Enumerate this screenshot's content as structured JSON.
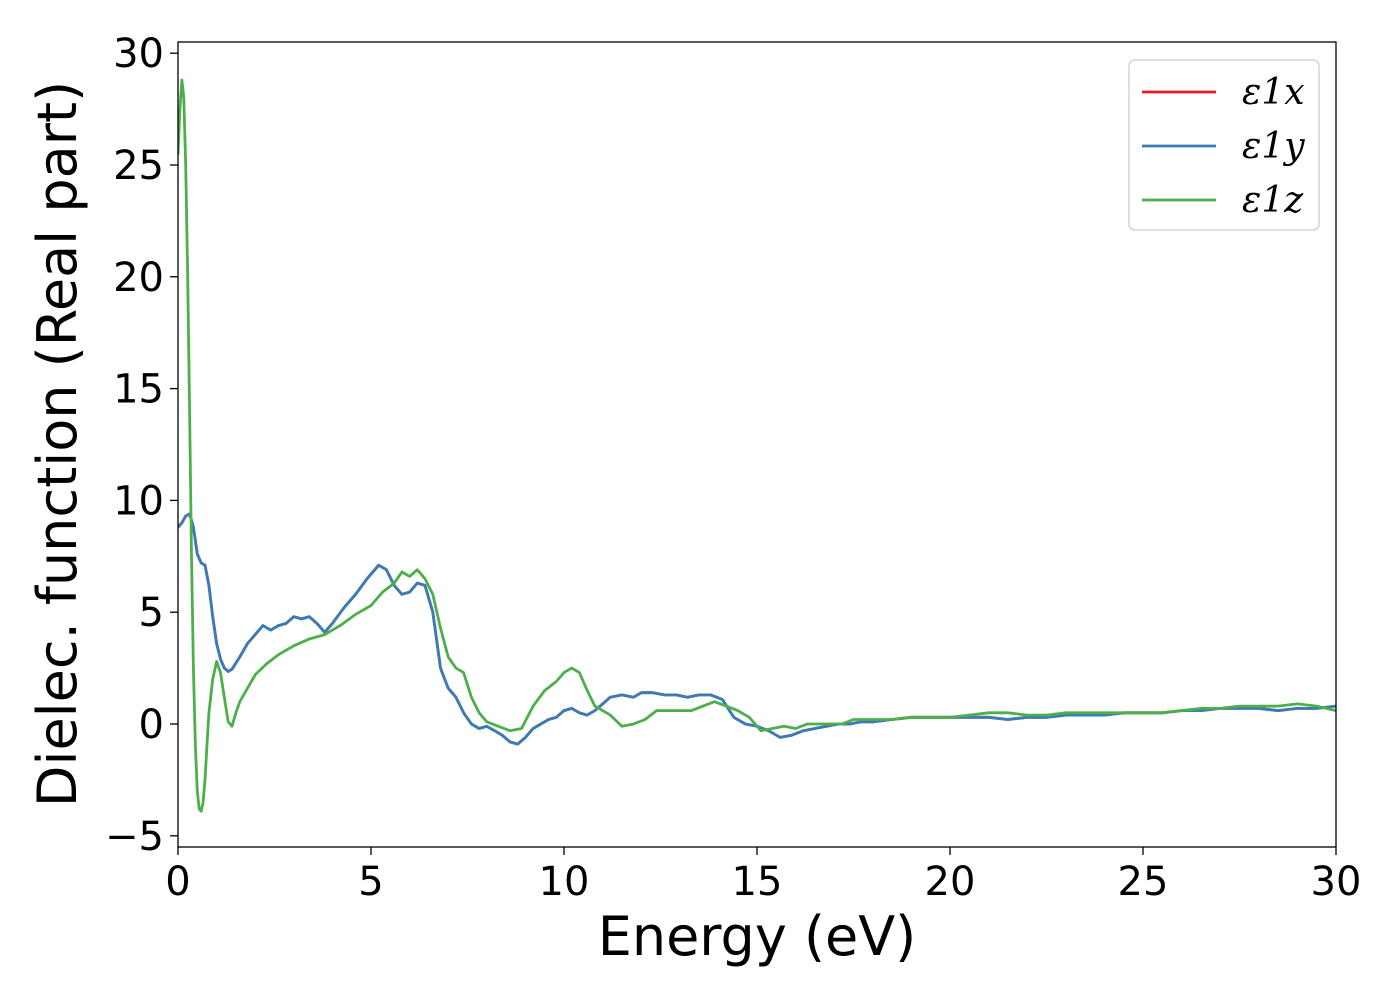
{
  "chart_data": {
    "type": "line",
    "xlabel": "Energy (eV)",
    "ylabel": "Dielec. function (Real part)",
    "xlim": [
      0,
      30
    ],
    "ylim": [
      -5.5,
      30.5
    ],
    "xticks": [
      0,
      5,
      10,
      15,
      20,
      25,
      30
    ],
    "xtick_labels": [
      "0",
      "5",
      "10",
      "15",
      "20",
      "25",
      "30"
    ],
    "yticks": [
      -5,
      0,
      5,
      10,
      15,
      20,
      25,
      30
    ],
    "ytick_labels": [
      "−5",
      "0",
      "5",
      "10",
      "15",
      "20",
      "25",
      "30"
    ],
    "grid": false,
    "legend_position": "top-right",
    "series": [
      {
        "name": "ε1x",
        "color": "#e41a1c",
        "x": [
          0,
          0.1,
          0.2,
          0.3,
          0.4,
          0.5,
          0.6,
          0.7,
          0.8,
          0.9,
          1.0,
          1.1,
          1.2,
          1.3,
          1.4,
          1.6,
          1.8,
          2.0,
          2.2,
          2.4,
          2.6,
          2.8,
          3.0,
          3.2,
          3.4,
          3.6,
          3.8,
          4.0,
          4.3,
          4.6,
          4.9,
          5.2,
          5.4,
          5.6,
          5.8,
          6.0,
          6.2,
          6.4,
          6.6,
          6.8,
          7.0,
          7.2,
          7.4,
          7.6,
          7.8,
          8.0,
          8.2,
          8.4,
          8.6,
          8.8,
          9.0,
          9.2,
          9.4,
          9.6,
          9.8,
          10.0,
          10.2,
          10.4,
          10.6,
          10.8,
          11.0,
          11.2,
          11.5,
          11.8,
          12.0,
          12.3,
          12.6,
          12.9,
          13.2,
          13.5,
          13.8,
          14.1,
          14.4,
          14.7,
          15.0,
          15.3,
          15.6,
          15.9,
          16.2,
          16.5,
          16.8,
          17.1,
          17.4,
          17.7,
          18.0,
          18.5,
          19.0,
          19.5,
          20.0,
          20.5,
          21.0,
          21.5,
          22.0,
          22.5,
          23.0,
          23.5,
          24.0,
          24.5,
          25.0,
          25.5,
          26.0,
          26.5,
          27.0,
          27.5,
          28.0,
          28.5,
          29.0,
          29.5,
          30.0
        ],
        "y": [
          8.8,
          9.0,
          9.3,
          9.4,
          8.8,
          7.6,
          7.2,
          7.1,
          6.2,
          4.8,
          3.6,
          2.9,
          2.5,
          2.35,
          2.45,
          3.0,
          3.6,
          4.0,
          4.4,
          4.2,
          4.4,
          4.5,
          4.8,
          4.7,
          4.8,
          4.5,
          4.1,
          4.5,
          5.2,
          5.8,
          6.5,
          7.1,
          6.9,
          6.2,
          5.8,
          5.9,
          6.3,
          6.2,
          5.0,
          2.5,
          1.6,
          1.2,
          0.5,
          0.0,
          -0.2,
          -0.1,
          -0.3,
          -0.5,
          -0.8,
          -0.9,
          -0.6,
          -0.2,
          0.0,
          0.2,
          0.3,
          0.6,
          0.7,
          0.5,
          0.4,
          0.6,
          0.9,
          1.2,
          1.3,
          1.2,
          1.4,
          1.4,
          1.3,
          1.3,
          1.2,
          1.3,
          1.3,
          1.1,
          0.3,
          0.0,
          -0.1,
          -0.3,
          -0.6,
          -0.5,
          -0.3,
          -0.2,
          -0.1,
          0.0,
          0.0,
          0.1,
          0.1,
          0.2,
          0.3,
          0.3,
          0.3,
          0.3,
          0.3,
          0.2,
          0.3,
          0.3,
          0.4,
          0.4,
          0.4,
          0.5,
          0.5,
          0.5,
          0.6,
          0.6,
          0.7,
          0.7,
          0.7,
          0.6,
          0.7,
          0.7,
          0.8
        ]
      },
      {
        "name": "ε1y",
        "color": "#377eb8",
        "x": [
          0,
          0.1,
          0.2,
          0.3,
          0.4,
          0.5,
          0.6,
          0.7,
          0.8,
          0.9,
          1.0,
          1.1,
          1.2,
          1.3,
          1.4,
          1.6,
          1.8,
          2.0,
          2.2,
          2.4,
          2.6,
          2.8,
          3.0,
          3.2,
          3.4,
          3.6,
          3.8,
          4.0,
          4.3,
          4.6,
          4.9,
          5.2,
          5.4,
          5.6,
          5.8,
          6.0,
          6.2,
          6.4,
          6.6,
          6.8,
          7.0,
          7.2,
          7.4,
          7.6,
          7.8,
          8.0,
          8.2,
          8.4,
          8.6,
          8.8,
          9.0,
          9.2,
          9.4,
          9.6,
          9.8,
          10.0,
          10.2,
          10.4,
          10.6,
          10.8,
          11.0,
          11.2,
          11.5,
          11.8,
          12.0,
          12.3,
          12.6,
          12.9,
          13.2,
          13.5,
          13.8,
          14.1,
          14.4,
          14.7,
          15.0,
          15.3,
          15.6,
          15.9,
          16.2,
          16.5,
          16.8,
          17.1,
          17.4,
          17.7,
          18.0,
          18.5,
          19.0,
          19.5,
          20.0,
          20.5,
          21.0,
          21.5,
          22.0,
          22.5,
          23.0,
          23.5,
          24.0,
          24.5,
          25.0,
          25.5,
          26.0,
          26.5,
          27.0,
          27.5,
          28.0,
          28.5,
          29.0,
          29.5,
          30.0
        ],
        "y": [
          8.8,
          9.0,
          9.3,
          9.4,
          8.8,
          7.6,
          7.2,
          7.1,
          6.2,
          4.8,
          3.6,
          2.9,
          2.5,
          2.35,
          2.45,
          3.0,
          3.6,
          4.0,
          4.4,
          4.2,
          4.4,
          4.5,
          4.8,
          4.7,
          4.8,
          4.5,
          4.1,
          4.5,
          5.2,
          5.8,
          6.5,
          7.1,
          6.9,
          6.2,
          5.8,
          5.9,
          6.3,
          6.2,
          5.0,
          2.5,
          1.6,
          1.2,
          0.5,
          0.0,
          -0.2,
          -0.1,
          -0.3,
          -0.5,
          -0.8,
          -0.9,
          -0.6,
          -0.2,
          0.0,
          0.2,
          0.3,
          0.6,
          0.7,
          0.5,
          0.4,
          0.6,
          0.9,
          1.2,
          1.3,
          1.2,
          1.4,
          1.4,
          1.3,
          1.3,
          1.2,
          1.3,
          1.3,
          1.1,
          0.3,
          0.0,
          -0.1,
          -0.3,
          -0.6,
          -0.5,
          -0.3,
          -0.2,
          -0.1,
          0.0,
          0.0,
          0.1,
          0.1,
          0.2,
          0.3,
          0.3,
          0.3,
          0.3,
          0.3,
          0.2,
          0.3,
          0.3,
          0.4,
          0.4,
          0.4,
          0.5,
          0.5,
          0.5,
          0.6,
          0.6,
          0.7,
          0.7,
          0.7,
          0.6,
          0.7,
          0.7,
          0.8
        ]
      },
      {
        "name": "ε1z",
        "color": "#4daf4a",
        "x": [
          0,
          0.05,
          0.1,
          0.15,
          0.2,
          0.25,
          0.3,
          0.35,
          0.4,
          0.45,
          0.5,
          0.55,
          0.6,
          0.65,
          0.7,
          0.75,
          0.8,
          0.9,
          1.0,
          1.1,
          1.2,
          1.3,
          1.4,
          1.5,
          1.6,
          1.8,
          2.0,
          2.3,
          2.6,
          3.0,
          3.4,
          3.8,
          4.2,
          4.6,
          5.0,
          5.3,
          5.6,
          5.8,
          6.0,
          6.2,
          6.4,
          6.6,
          6.8,
          7.0,
          7.2,
          7.4,
          7.6,
          7.8,
          8.0,
          8.3,
          8.6,
          8.9,
          9.2,
          9.5,
          9.8,
          10.0,
          10.2,
          10.4,
          10.6,
          10.8,
          11.0,
          11.2,
          11.5,
          11.8,
          12.1,
          12.4,
          12.7,
          13.0,
          13.3,
          13.6,
          13.9,
          14.2,
          14.5,
          14.8,
          15.1,
          15.4,
          15.7,
          16.0,
          16.3,
          16.6,
          16.9,
          17.2,
          17.5,
          18.0,
          18.5,
          19.0,
          19.5,
          20.0,
          20.5,
          21.0,
          21.5,
          22.0,
          22.5,
          23.0,
          23.5,
          24.0,
          24.5,
          25.0,
          25.5,
          26.0,
          26.5,
          27.0,
          27.5,
          28.0,
          28.5,
          29.0,
          29.5,
          30.0
        ],
        "y": [
          25.5,
          27.5,
          28.8,
          28.0,
          25.0,
          20.0,
          14.0,
          7.5,
          2.5,
          -1.0,
          -3.0,
          -3.8,
          -3.9,
          -3.5,
          -2.5,
          -1.0,
          0.5,
          2.0,
          2.8,
          2.3,
          1.2,
          0.1,
          -0.1,
          0.5,
          1.0,
          1.6,
          2.2,
          2.7,
          3.1,
          3.5,
          3.8,
          4.0,
          4.4,
          4.9,
          5.3,
          5.9,
          6.3,
          6.8,
          6.6,
          6.9,
          6.5,
          5.8,
          4.3,
          3.0,
          2.5,
          2.3,
          1.2,
          0.5,
          0.1,
          -0.1,
          -0.3,
          -0.2,
          0.8,
          1.5,
          1.9,
          2.3,
          2.5,
          2.3,
          1.5,
          0.8,
          0.6,
          0.4,
          -0.1,
          0.0,
          0.2,
          0.6,
          0.6,
          0.6,
          0.6,
          0.8,
          1.0,
          0.8,
          0.6,
          0.3,
          -0.3,
          -0.2,
          -0.1,
          -0.2,
          0.0,
          0.0,
          0.0,
          0.0,
          0.2,
          0.2,
          0.2,
          0.3,
          0.3,
          0.3,
          0.4,
          0.5,
          0.5,
          0.4,
          0.4,
          0.5,
          0.5,
          0.5,
          0.5,
          0.5,
          0.5,
          0.6,
          0.7,
          0.7,
          0.8,
          0.8,
          0.8,
          0.9,
          0.8,
          0.6
        ]
      }
    ]
  }
}
